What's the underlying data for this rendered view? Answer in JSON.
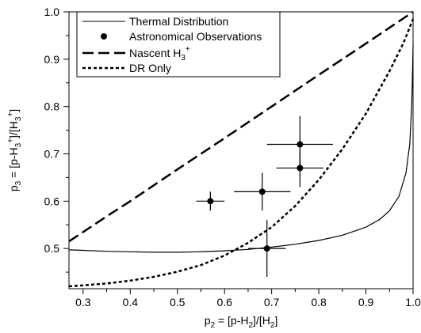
{
  "chart_data": {
    "type": "scatter",
    "xlabel": {
      "main": "p",
      "sub": "2",
      "rest": " = [p-H",
      "sub2": "2",
      "rest2": "]/[H",
      "sub3": "2",
      "rest3": "]"
    },
    "ylabel": {
      "main": "p",
      "sub": "3",
      "rest": " = [p-H",
      "sub2": "3",
      "sup2": "+",
      "rest2": "]/[H",
      "sub3": "3",
      "sup3": "+",
      "rest3": "]"
    },
    "xlim": [
      0.27,
      1.0
    ],
    "ylim": [
      0.415,
      1.0
    ],
    "x_ticks": [
      "0.3",
      "0.4",
      "0.5",
      "0.6",
      "0.7",
      "0.8",
      "0.9",
      "1.0"
    ],
    "y_ticks": [
      "0.5",
      "0.6",
      "0.7",
      "0.8",
      "0.9",
      "1.0"
    ],
    "grid": false,
    "legend_position": "top-left",
    "legend": [
      {
        "key": "thermal",
        "label": "Thermal Distribution",
        "style": "solid-line"
      },
      {
        "key": "obs",
        "label": "Astronomical Observations",
        "style": "marker"
      },
      {
        "key": "nascent",
        "label_main": "Nascent H",
        "label_sub": "3",
        "label_sup": "+",
        "style": "long-dash"
      },
      {
        "key": "dr",
        "label": "DR Only",
        "style": "short-dash"
      }
    ],
    "series": [
      {
        "key": "thermal",
        "type": "line",
        "points": [
          [
            0.27,
            0.497
          ],
          [
            0.3,
            0.496
          ],
          [
            0.35,
            0.494
          ],
          [
            0.4,
            0.493
          ],
          [
            0.45,
            0.492
          ],
          [
            0.5,
            0.492
          ],
          [
            0.55,
            0.493
          ],
          [
            0.6,
            0.495
          ],
          [
            0.65,
            0.498
          ],
          [
            0.7,
            0.503
          ],
          [
            0.75,
            0.509
          ],
          [
            0.8,
            0.517
          ],
          [
            0.85,
            0.528
          ],
          [
            0.9,
            0.545
          ],
          [
            0.93,
            0.562
          ],
          [
            0.95,
            0.58
          ],
          [
            0.97,
            0.61
          ],
          [
            0.985,
            0.66
          ],
          [
            0.993,
            0.72
          ],
          [
            0.997,
            0.8
          ],
          [
            0.999,
            0.88
          ],
          [
            1.0,
            0.93
          ]
        ]
      },
      {
        "key": "nascent",
        "type": "line",
        "points": [
          [
            0.27,
            0.515
          ],
          [
            0.35,
            0.568
          ],
          [
            0.4,
            0.6
          ],
          [
            0.5,
            0.667
          ],
          [
            0.6,
            0.733
          ],
          [
            0.7,
            0.8
          ],
          [
            0.8,
            0.867
          ],
          [
            0.9,
            0.933
          ],
          [
            1.0,
            1.0
          ]
        ]
      },
      {
        "key": "dr",
        "type": "line",
        "points": [
          [
            0.27,
            0.42
          ],
          [
            0.3,
            0.422
          ],
          [
            0.35,
            0.426
          ],
          [
            0.4,
            0.432
          ],
          [
            0.45,
            0.44
          ],
          [
            0.5,
            0.451
          ],
          [
            0.55,
            0.465
          ],
          [
            0.6,
            0.485
          ],
          [
            0.65,
            0.512
          ],
          [
            0.7,
            0.545
          ],
          [
            0.75,
            0.59
          ],
          [
            0.8,
            0.645
          ],
          [
            0.85,
            0.71
          ],
          [
            0.9,
            0.785
          ],
          [
            0.95,
            0.875
          ],
          [
            0.98,
            0.935
          ],
          [
            1.0,
            0.985
          ]
        ]
      },
      {
        "key": "obs",
        "type": "scatter",
        "points": [
          {
            "x": 0.57,
            "y": 0.6,
            "xerr": 0.03,
            "yerr": 0.02
          },
          {
            "x": 0.68,
            "y": 0.62,
            "xerr": 0.06,
            "yerr": 0.04
          },
          {
            "x": 0.69,
            "y": 0.5,
            "xerr": 0.04,
            "yerr": 0.06
          },
          {
            "x": 0.76,
            "y": 0.67,
            "xerr": 0.05,
            "yerr": 0.04
          },
          {
            "x": 0.76,
            "y": 0.72,
            "xerr": 0.07,
            "yerr": 0.06
          }
        ]
      }
    ]
  }
}
